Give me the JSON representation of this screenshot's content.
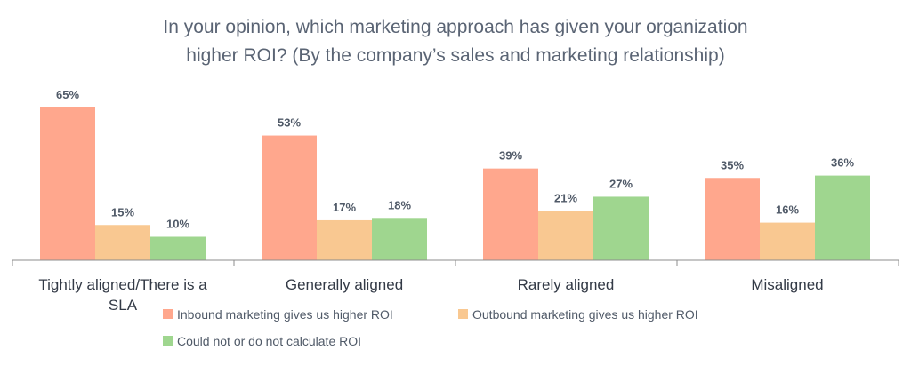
{
  "chart_data": {
    "type": "bar",
    "title": "In your opinion, which marketing approach has given your organization higher ROI? (By the company’s sales and marketing relationship)",
    "title_lines": [
      "In your opinion, which marketing approach has given your organization",
      "higher ROI? (By the company’s sales and marketing relationship)"
    ],
    "categories": [
      "Tightly aligned/There is a SLA",
      "Generally aligned",
      "Rarely aligned",
      "Misaligned"
    ],
    "category_lines": [
      [
        "Tightly aligned/There is a",
        "SLA"
      ],
      [
        "Generally aligned"
      ],
      [
        "Rarely aligned"
      ],
      [
        "Misaligned"
      ]
    ],
    "series": [
      {
        "name": "Inbound marketing gives us higher ROI",
        "color": "#FFA78D",
        "values": [
          65,
          53,
          39,
          35
        ],
        "labels": [
          "65%",
          "53%",
          "39%",
          "35%"
        ]
      },
      {
        "name": "Outbound marketing gives us higher ROI",
        "color": "#F9C891",
        "values": [
          15,
          17,
          21,
          16
        ],
        "labels": [
          "15%",
          "17%",
          "21%",
          "16%"
        ]
      },
      {
        "name": "Could not or do not calculate ROI",
        "color": "#9FD68F",
        "values": [
          10,
          18,
          27,
          36
        ],
        "labels": [
          "10%",
          "18%",
          "27%",
          "36%"
        ]
      }
    ],
    "unit": "%",
    "ylim": [
      0,
      100
    ],
    "grid": false,
    "legend_position": "bottom"
  }
}
